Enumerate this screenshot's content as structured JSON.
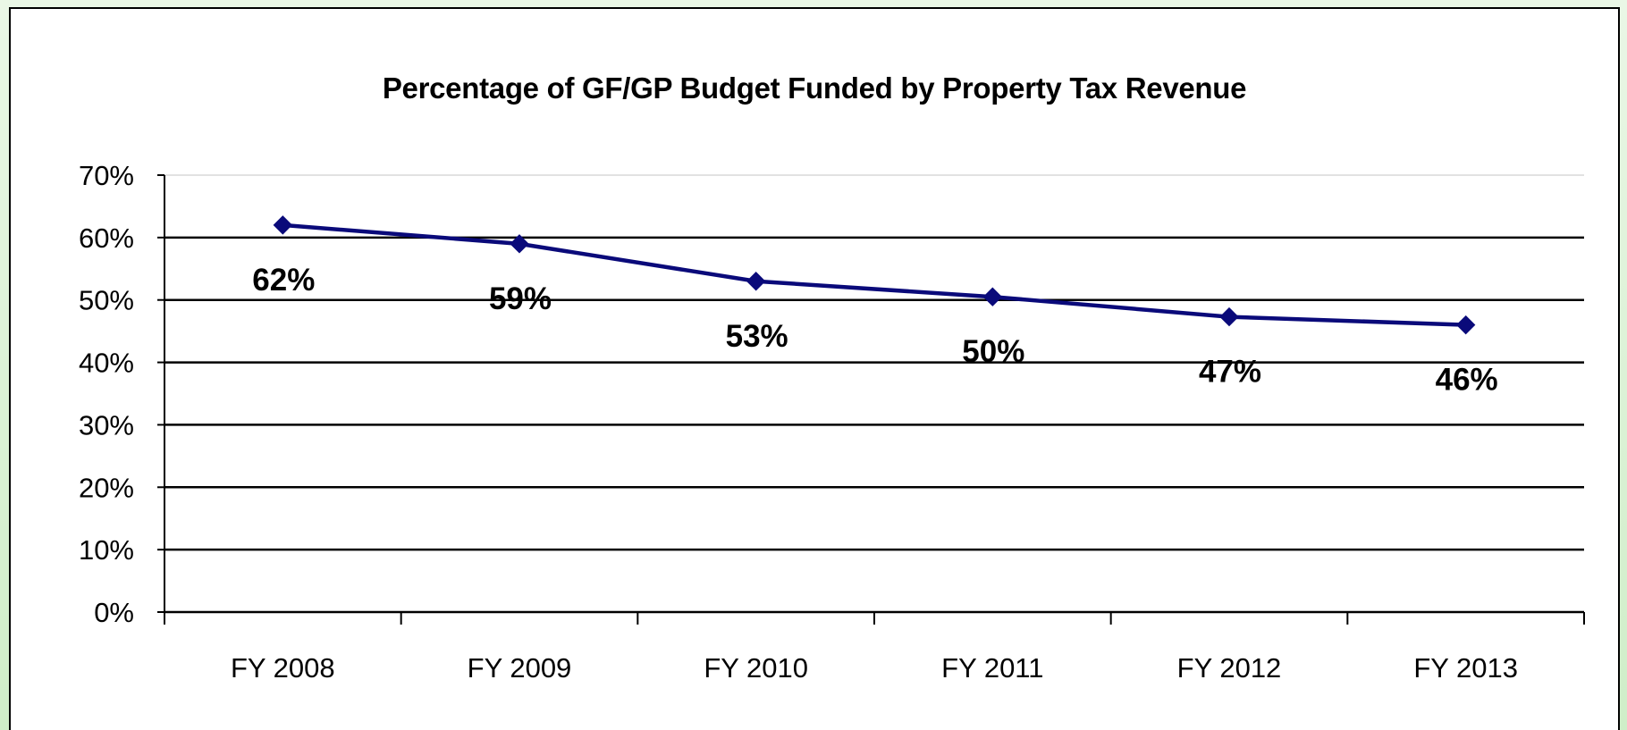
{
  "chart_data": {
    "type": "line",
    "title": "Percentage of GF/GP Budget Funded by Property Tax Revenue",
    "xlabel": "",
    "ylabel": "",
    "categories": [
      "FY 2008",
      "FY 2009",
      "FY 2010",
      "FY 2011",
      "FY 2012",
      "FY 2013"
    ],
    "series": [
      {
        "values": [
          62,
          59,
          53,
          50.5,
          47.3,
          46
        ],
        "labels": [
          "62%",
          "59%",
          "53%",
          "50%",
          "47%",
          "46%"
        ]
      }
    ],
    "ylim": [
      0,
      70
    ],
    "yticks": [
      "0%",
      "10%",
      "20%",
      "30%",
      "40%",
      "50%",
      "60%",
      "70%"
    ],
    "grid": "horizontal",
    "legend": "none",
    "colors": {
      "line": "#0a0a7a",
      "marker": "#0a0a7a",
      "grid": "#000000",
      "background_outer": "#d6f0d0"
    }
  }
}
